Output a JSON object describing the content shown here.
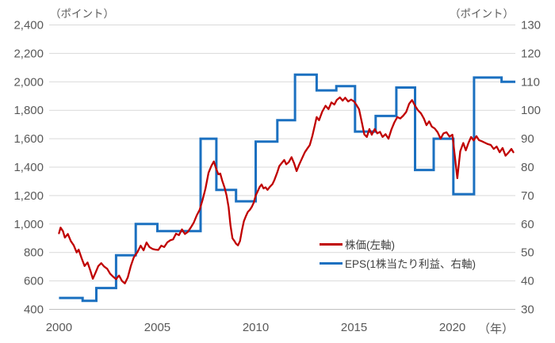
{
  "chart_data": {
    "type": "line",
    "title": "",
    "grid_color": "#d9d9d9",
    "axis_line_color": "#bfbfbf",
    "tick_text_color": "#595959",
    "legend_position": "bottom-right-inside",
    "left_axis": {
      "unit_label": "（ポイント）",
      "min": 400,
      "max": 2400,
      "tick_labels": [
        "2,400",
        "2,200",
        "2,000",
        "1,800",
        "1,600",
        "1,400",
        "1,200",
        "1,000",
        "800",
        "600",
        "400"
      ]
    },
    "right_axis": {
      "unit_label": "（ポイント）",
      "min": 30,
      "max": 130,
      "tick_labels": [
        "130",
        "120",
        "110",
        "100",
        "90",
        "80",
        "70",
        "60",
        "50",
        "40",
        "30"
      ]
    },
    "x_axis": {
      "unit_label": "（年）",
      "min": 1999.5,
      "max": 2023.2,
      "tick_years": [
        2000,
        2005,
        2010,
        2015,
        2020
      ],
      "tick_labels": [
        "2000",
        "2005",
        "2010",
        "2015",
        "2020"
      ]
    },
    "series": [
      {
        "name": "株価(左軸)",
        "axis": "left",
        "style": "line",
        "color": "#c00000",
        "stroke_width": 2.3,
        "points": [
          [
            2000.0,
            935
          ],
          [
            2000.08,
            975
          ],
          [
            2000.2,
            950
          ],
          [
            2000.3,
            905
          ],
          [
            2000.45,
            930
          ],
          [
            2000.6,
            880
          ],
          [
            2000.75,
            850
          ],
          [
            2000.9,
            800
          ],
          [
            2001.0,
            820
          ],
          [
            2001.15,
            760
          ],
          [
            2001.3,
            705
          ],
          [
            2001.45,
            730
          ],
          [
            2001.6,
            670
          ],
          [
            2001.72,
            615
          ],
          [
            2001.85,
            655
          ],
          [
            2002.0,
            705
          ],
          [
            2002.15,
            725
          ],
          [
            2002.3,
            700
          ],
          [
            2002.45,
            685
          ],
          [
            2002.6,
            650
          ],
          [
            2002.75,
            630
          ],
          [
            2002.9,
            612
          ],
          [
            2003.05,
            638
          ],
          [
            2003.2,
            600
          ],
          [
            2003.35,
            582
          ],
          [
            2003.5,
            625
          ],
          [
            2003.65,
            705
          ],
          [
            2003.8,
            765
          ],
          [
            2004.0,
            805
          ],
          [
            2004.15,
            848
          ],
          [
            2004.3,
            815
          ],
          [
            2004.45,
            870
          ],
          [
            2004.6,
            838
          ],
          [
            2004.75,
            825
          ],
          [
            2004.9,
            820
          ],
          [
            2005.05,
            818
          ],
          [
            2005.2,
            848
          ],
          [
            2005.35,
            838
          ],
          [
            2005.5,
            870
          ],
          [
            2005.65,
            885
          ],
          [
            2005.8,
            892
          ],
          [
            2005.95,
            932
          ],
          [
            2006.1,
            922
          ],
          [
            2006.25,
            962
          ],
          [
            2006.4,
            930
          ],
          [
            2006.55,
            945
          ],
          [
            2006.7,
            975
          ],
          [
            2006.85,
            1010
          ],
          [
            2007.0,
            1060
          ],
          [
            2007.15,
            1100
          ],
          [
            2007.3,
            1170
          ],
          [
            2007.45,
            1250
          ],
          [
            2007.6,
            1360
          ],
          [
            2007.75,
            1410
          ],
          [
            2007.87,
            1440
          ],
          [
            2008.0,
            1385
          ],
          [
            2008.1,
            1350
          ],
          [
            2008.2,
            1355
          ],
          [
            2008.3,
            1305
          ],
          [
            2008.42,
            1255
          ],
          [
            2008.52,
            1200
          ],
          [
            2008.62,
            1120
          ],
          [
            2008.72,
            990
          ],
          [
            2008.82,
            900
          ],
          [
            2008.92,
            880
          ],
          [
            2009.0,
            862
          ],
          [
            2009.1,
            850
          ],
          [
            2009.2,
            880
          ],
          [
            2009.3,
            955
          ],
          [
            2009.4,
            1020
          ],
          [
            2009.5,
            1055
          ],
          [
            2009.6,
            1085
          ],
          [
            2009.7,
            1100
          ],
          [
            2009.8,
            1120
          ],
          [
            2009.9,
            1150
          ],
          [
            2010.0,
            1200
          ],
          [
            2010.1,
            1230
          ],
          [
            2010.2,
            1260
          ],
          [
            2010.3,
            1278
          ],
          [
            2010.4,
            1250
          ],
          [
            2010.5,
            1258
          ],
          [
            2010.6,
            1240
          ],
          [
            2010.72,
            1262
          ],
          [
            2010.85,
            1280
          ],
          [
            2010.95,
            1310
          ],
          [
            2011.1,
            1365
          ],
          [
            2011.2,
            1408
          ],
          [
            2011.3,
            1425
          ],
          [
            2011.45,
            1450
          ],
          [
            2011.55,
            1420
          ],
          [
            2011.68,
            1435
          ],
          [
            2011.82,
            1470
          ],
          [
            2011.95,
            1428
          ],
          [
            2012.08,
            1372
          ],
          [
            2012.2,
            1415
          ],
          [
            2012.35,
            1460
          ],
          [
            2012.5,
            1505
          ],
          [
            2012.62,
            1530
          ],
          [
            2012.75,
            1555
          ],
          [
            2012.88,
            1620
          ],
          [
            2013.0,
            1690
          ],
          [
            2013.1,
            1752
          ],
          [
            2013.22,
            1730
          ],
          [
            2013.38,
            1790
          ],
          [
            2013.55,
            1832
          ],
          [
            2013.7,
            1808
          ],
          [
            2013.85,
            1855
          ],
          [
            2014.0,
            1840
          ],
          [
            2014.12,
            1872
          ],
          [
            2014.28,
            1890
          ],
          [
            2014.42,
            1868
          ],
          [
            2014.55,
            1888
          ],
          [
            2014.7,
            1862
          ],
          [
            2014.85,
            1875
          ],
          [
            2015.0,
            1862
          ],
          [
            2015.12,
            1838
          ],
          [
            2015.25,
            1808
          ],
          [
            2015.4,
            1712
          ],
          [
            2015.52,
            1630
          ],
          [
            2015.65,
            1612
          ],
          [
            2015.78,
            1668
          ],
          [
            2015.9,
            1628
          ],
          [
            2016.05,
            1668
          ],
          [
            2016.18,
            1638
          ],
          [
            2016.32,
            1648
          ],
          [
            2016.45,
            1612
          ],
          [
            2016.6,
            1632
          ],
          [
            2016.75,
            1600
          ],
          [
            2016.9,
            1665
          ],
          [
            2017.05,
            1715
          ],
          [
            2017.2,
            1752
          ],
          [
            2017.35,
            1742
          ],
          [
            2017.5,
            1762
          ],
          [
            2017.65,
            1788
          ],
          [
            2017.8,
            1845
          ],
          [
            2017.95,
            1872
          ],
          [
            2018.1,
            1832
          ],
          [
            2018.25,
            1800
          ],
          [
            2018.4,
            1778
          ],
          [
            2018.55,
            1742
          ],
          [
            2018.68,
            1695
          ],
          [
            2018.82,
            1722
          ],
          [
            2018.95,
            1685
          ],
          [
            2019.1,
            1672
          ],
          [
            2019.25,
            1645
          ],
          [
            2019.4,
            1600
          ],
          [
            2019.55,
            1638
          ],
          [
            2019.7,
            1645
          ],
          [
            2019.85,
            1615
          ],
          [
            2020.0,
            1628
          ],
          [
            2020.12,
            1480
          ],
          [
            2020.25,
            1322
          ],
          [
            2020.4,
            1512
          ],
          [
            2020.55,
            1570
          ],
          [
            2020.68,
            1518
          ],
          [
            2020.82,
            1572
          ],
          [
            2020.95,
            1612
          ],
          [
            2021.08,
            1588
          ],
          [
            2021.22,
            1618
          ],
          [
            2021.35,
            1590
          ],
          [
            2021.5,
            1582
          ],
          [
            2021.65,
            1572
          ],
          [
            2021.8,
            1562
          ],
          [
            2021.95,
            1556
          ],
          [
            2022.1,
            1528
          ],
          [
            2022.25,
            1545
          ],
          [
            2022.4,
            1505
          ],
          [
            2022.55,
            1535
          ],
          [
            2022.7,
            1480
          ],
          [
            2022.85,
            1502
          ],
          [
            2023.0,
            1528
          ],
          [
            2023.1,
            1505
          ]
        ]
      },
      {
        "name": "EPS(1株当たり利益、右軸)",
        "axis": "right",
        "style": "step",
        "color": "#1b70c0",
        "stroke_width": 3,
        "segments": [
          [
            2000.0,
            2001.2,
            34
          ],
          [
            2001.2,
            2001.9,
            33
          ],
          [
            2001.9,
            2002.9,
            37.5
          ],
          [
            2002.9,
            2003.9,
            49
          ],
          [
            2003.9,
            2005.0,
            60
          ],
          [
            2005.0,
            2007.2,
            57.5
          ],
          [
            2007.2,
            2008.0,
            90
          ],
          [
            2008.0,
            2009.0,
            72
          ],
          [
            2009.0,
            2010.0,
            68
          ],
          [
            2010.0,
            2011.1,
            89
          ],
          [
            2011.1,
            2012.0,
            96.5
          ],
          [
            2012.0,
            2013.1,
            112.5
          ],
          [
            2013.1,
            2014.1,
            107
          ],
          [
            2014.1,
            2015.05,
            108.5
          ],
          [
            2015.05,
            2016.1,
            92.5
          ],
          [
            2016.1,
            2017.15,
            98
          ],
          [
            2017.15,
            2018.1,
            108
          ],
          [
            2018.1,
            2019.05,
            79
          ],
          [
            2019.05,
            2020.05,
            90
          ],
          [
            2020.05,
            2021.1,
            70.5
          ],
          [
            2021.1,
            2022.5,
            111.5
          ],
          [
            2022.5,
            2023.2,
            110
          ]
        ]
      }
    ]
  }
}
